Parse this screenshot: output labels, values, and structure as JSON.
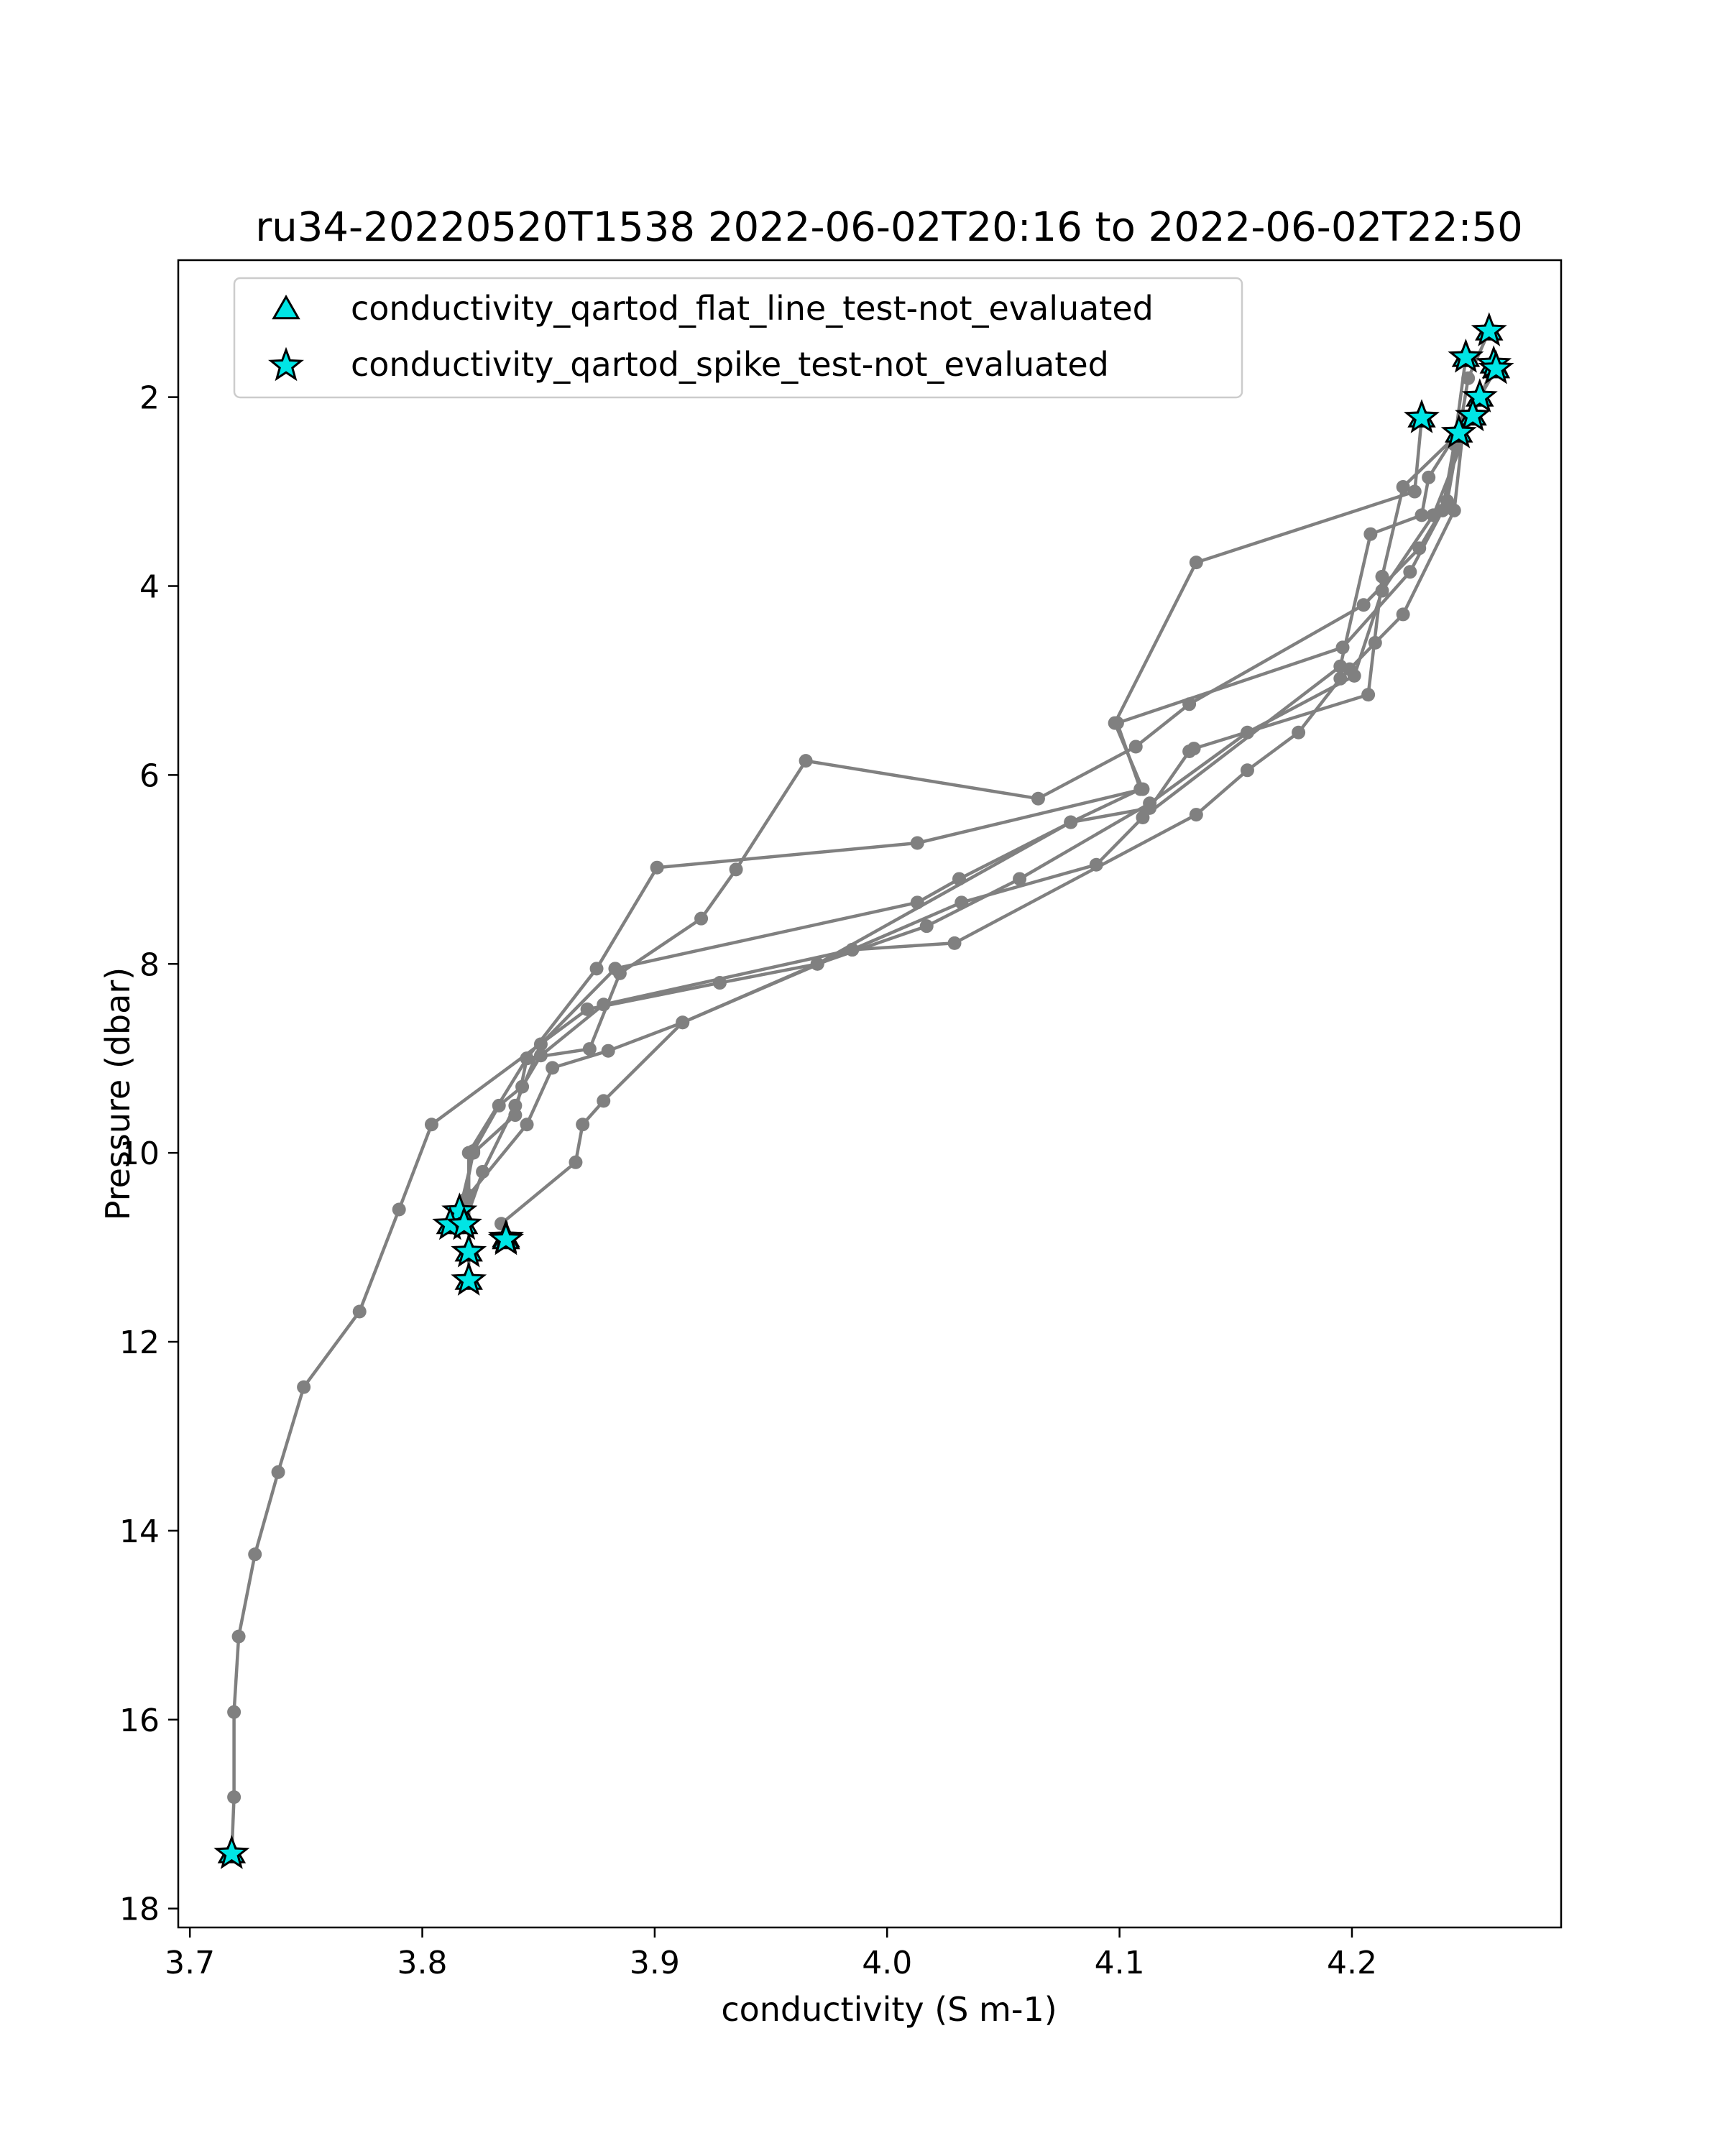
{
  "chart_data": {
    "type": "scatter",
    "title": "ru34-20220520T1538 2022-06-02T20:16 to 2022-06-02T22:50",
    "xlabel": "conductivity (S m-1)",
    "ylabel": "Pressure (dbar)",
    "xlim": [
      3.695,
      4.29
    ],
    "ylim": [
      18.2,
      0.55
    ],
    "y_inverted": true,
    "grid": false,
    "x_ticks": [
      3.7,
      3.8,
      3.9,
      4.0,
      4.1,
      4.2
    ],
    "x_tick_labels": [
      "3.7",
      "3.8",
      "3.9",
      "4.0",
      "4.1",
      "4.2"
    ],
    "y_ticks": [
      2,
      4,
      6,
      8,
      10,
      12,
      14,
      16,
      18
    ],
    "y_tick_labels": [
      "2",
      "4",
      "6",
      "8",
      "10",
      "12",
      "14",
      "16",
      "18"
    ],
    "legend_position": "upper-left",
    "colors": {
      "profile_line": "#808080",
      "flag_fill": "#00e5e5",
      "flag_edge": "#000000",
      "frame": "#000000"
    },
    "profiles": [
      {
        "points": [
          [
            4.259,
            1.3
          ],
          [
            4.25,
            1.8
          ],
          [
            4.246,
            2.4
          ],
          [
            4.241,
            3.1
          ],
          [
            4.229,
            3.6
          ],
          [
            4.205,
            4.2
          ],
          [
            4.13,
            5.25
          ],
          [
            4.107,
            5.7
          ],
          [
            4.065,
            6.25
          ],
          [
            3.965,
            5.85
          ],
          [
            3.935,
            7.0
          ],
          [
            3.92,
            7.52
          ],
          [
            3.885,
            8.1
          ],
          [
            3.872,
            8.9
          ],
          [
            3.845,
            9.0
          ],
          [
            3.84,
            9.6
          ],
          [
            3.822,
            10.0
          ],
          [
            3.816,
            10.62
          ]
        ]
      },
      {
        "points": [
          [
            4.249,
            1.58
          ],
          [
            4.244,
            2.5
          ],
          [
            4.239,
            3.2
          ],
          [
            4.225,
            3.85
          ],
          [
            4.196,
            4.65
          ],
          [
            4.099,
            5.45
          ],
          [
            4.109,
            6.15
          ],
          [
            4.079,
            6.5
          ],
          [
            4.031,
            7.1
          ],
          [
            4.013,
            7.35
          ],
          [
            3.883,
            8.05
          ],
          [
            3.851,
            8.85
          ],
          [
            3.84,
            9.5
          ],
          [
            3.826,
            10.2
          ],
          [
            3.818,
            10.76
          ]
        ]
      },
      {
        "points": [
          [
            4.261,
            1.65
          ],
          [
            4.252,
            2.2
          ],
          [
            4.235,
            3.25
          ],
          [
            4.213,
            4.05
          ],
          [
            4.201,
            4.95
          ],
          [
            4.155,
            5.55
          ],
          [
            4.113,
            6.3
          ],
          [
            4.057,
            7.1
          ],
          [
            4.017,
            7.6
          ],
          [
            3.97,
            8.0
          ],
          [
            3.912,
            8.62
          ],
          [
            3.88,
            8.92
          ],
          [
            3.856,
            9.1
          ],
          [
            3.845,
            9.7
          ],
          [
            3.82,
            10.45
          ],
          [
            3.82,
            11.05
          ]
        ]
      },
      {
        "points": [
          [
            4.255,
            2.0
          ],
          [
            4.233,
            2.85
          ],
          [
            4.23,
            3.25
          ],
          [
            4.208,
            3.45
          ],
          [
            4.195,
            4.85
          ],
          [
            4.11,
            6.45
          ],
          [
            4.09,
            6.95
          ],
          [
            4.032,
            7.35
          ],
          [
            3.985,
            7.85
          ],
          [
            3.912,
            8.62
          ],
          [
            3.878,
            9.45
          ],
          [
            3.869,
            9.7
          ],
          [
            3.866,
            10.1
          ],
          [
            3.834,
            10.75
          ],
          [
            3.836,
            10.92
          ]
        ]
      },
      {
        "points": [
          [
            4.23,
            2.22
          ],
          [
            4.227,
            3.0
          ],
          [
            4.133,
            3.75
          ],
          [
            4.098,
            5.45
          ],
          [
            4.11,
            6.15
          ],
          [
            4.013,
            6.72
          ],
          [
            3.901,
            6.98
          ],
          [
            3.875,
            8.05
          ],
          [
            3.845,
            9.0
          ],
          [
            3.82,
            10.0
          ],
          [
            3.82,
            11.35
          ]
        ]
      },
      {
        "points": [
          [
            4.262,
            1.7
          ],
          [
            4.248,
            2.3
          ],
          [
            4.244,
            3.2
          ],
          [
            4.222,
            4.3
          ],
          [
            4.21,
            4.6
          ],
          [
            4.199,
            4.88
          ],
          [
            4.195,
            4.98
          ],
          [
            4.177,
            5.55
          ],
          [
            4.155,
            5.95
          ],
          [
            4.133,
            6.42
          ],
          [
            4.029,
            7.78
          ],
          [
            3.985,
            7.85
          ],
          [
            3.878,
            8.43
          ],
          [
            3.851,
            8.97
          ],
          [
            3.843,
            9.3
          ],
          [
            3.833,
            9.5
          ],
          [
            3.822,
            9.98
          ],
          [
            3.818,
            10.5
          ]
        ]
      },
      {
        "points": [
          [
            4.246,
            2.38
          ],
          [
            4.222,
            2.95
          ],
          [
            4.213,
            3.9
          ],
          [
            4.207,
            5.15
          ],
          [
            4.132,
            5.72
          ],
          [
            4.13,
            5.75
          ],
          [
            4.113,
            6.35
          ],
          [
            4.079,
            6.5
          ],
          [
            3.97,
            8.0
          ],
          [
            3.928,
            8.2
          ],
          [
            3.871,
            8.48
          ],
          [
            3.804,
            9.7
          ],
          [
            3.79,
            10.6
          ],
          [
            3.773,
            11.68
          ],
          [
            3.749,
            12.48
          ],
          [
            3.738,
            13.38
          ],
          [
            3.728,
            14.25
          ],
          [
            3.721,
            15.12
          ],
          [
            3.719,
            15.92
          ],
          [
            3.719,
            16.82
          ],
          [
            3.718,
            17.42
          ]
        ]
      }
    ],
    "legend": [
      {
        "marker": "triangle",
        "label": "conductivity_qartod_flat_line_test-not_evaluated"
      },
      {
        "marker": "star",
        "label": "conductivity_qartod_spike_test-not_evaluated"
      }
    ],
    "flat_line_not_evaluated": [
      [
        4.259,
        1.3
      ],
      [
        4.249,
        1.58
      ],
      [
        4.261,
        1.65
      ],
      [
        4.262,
        1.7
      ],
      [
        4.255,
        2.0
      ],
      [
        4.252,
        2.2
      ],
      [
        4.23,
        2.22
      ],
      [
        4.246,
        2.38
      ],
      [
        3.816,
        10.62
      ],
      [
        3.812,
        10.76
      ],
      [
        3.818,
        10.76
      ],
      [
        3.836,
        10.9
      ],
      [
        3.836,
        10.92
      ],
      [
        3.82,
        11.05
      ],
      [
        3.82,
        11.35
      ],
      [
        3.718,
        17.42
      ]
    ],
    "spike_not_evaluated": [
      [
        4.259,
        1.3
      ],
      [
        4.249,
        1.58
      ],
      [
        4.261,
        1.65
      ],
      [
        4.262,
        1.7
      ],
      [
        4.255,
        2.0
      ],
      [
        4.252,
        2.2
      ],
      [
        4.23,
        2.22
      ],
      [
        4.246,
        2.38
      ],
      [
        3.816,
        10.62
      ],
      [
        3.812,
        10.76
      ],
      [
        3.818,
        10.76
      ],
      [
        3.836,
        10.9
      ],
      [
        3.836,
        10.92
      ],
      [
        3.82,
        11.05
      ],
      [
        3.82,
        11.35
      ],
      [
        3.718,
        17.42
      ]
    ]
  }
}
